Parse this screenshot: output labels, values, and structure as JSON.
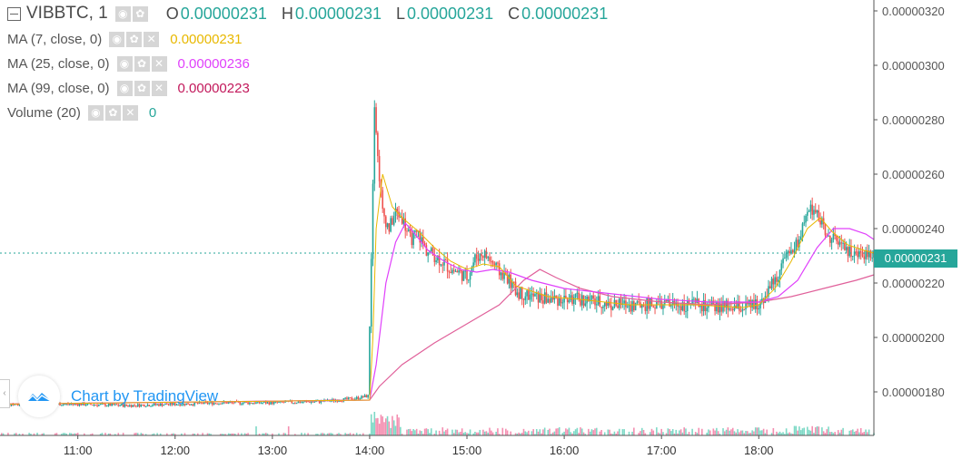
{
  "header": {
    "symbol": "VIBBTC, 1",
    "o_key": "O",
    "o_val": "0.00000231",
    "h_key": "H",
    "h_val": "0.00000231",
    "l_key": "L",
    "l_val": "0.00000231",
    "c_key": "C",
    "c_val": "0.00000231"
  },
  "studies": [
    {
      "label": "MA (7, close, 0)",
      "value": "0.00000231",
      "color": "#e8b800"
    },
    {
      "label": "MA (25, close, 0)",
      "value": "0.00000236",
      "color": "#e040fb"
    },
    {
      "label": "MA (99, close, 0)",
      "value": "0.00000223",
      "color": "#c2185b"
    },
    {
      "label": "Volume (20)",
      "value": "0",
      "color": "#26a69a"
    }
  ],
  "watermark": "Chart by TradingView",
  "last_price_label": "0.00000231",
  "colors": {
    "up": "#26a69a",
    "down": "#ef5350",
    "vol_up": "#7ed9c6",
    "vol_down": "#f48fb1",
    "ma7": "#e8b800",
    "ma25": "#e040fb",
    "ma99": "#e0609a",
    "price_line": "#26a69a"
  },
  "icons": [
    "collapse-icon",
    "eye-icon",
    "gear-icon",
    "close-icon",
    "tradingview-logo-icon",
    "scroll-left-icon"
  ],
  "chart_data": {
    "type": "candlestick",
    "x_ticks": [
      "11:00",
      "12:00",
      "13:00",
      "14:00",
      "15:00",
      "16:00",
      "17:00",
      "18:00"
    ],
    "x_tick_minutes": [
      0,
      60,
      120,
      180,
      240,
      300,
      360,
      420
    ],
    "y_ticks": [
      "0.00000180",
      "0.00000200",
      "0.00000220",
      "0.00000240",
      "0.00000260",
      "0.00000280",
      "0.00000300",
      "0.00000320"
    ],
    "y_tick_values": [
      180,
      200,
      220,
      240,
      260,
      280,
      300,
      320
    ],
    "y_unit_scale": "1e-8",
    "ylim": [
      164,
      324
    ],
    "x_range_minutes": [
      -48,
      491
    ],
    "last_price": 231,
    "grid": false,
    "ohlc_path": [
      [
        -48,
        175.5
      ],
      [
        0,
        175.5
      ],
      [
        30,
        175.0
      ],
      [
        60,
        175.5
      ],
      [
        90,
        176.0
      ],
      [
        120,
        176.0
      ],
      [
        150,
        176.5
      ],
      [
        170,
        177.5
      ],
      [
        179,
        178.5
      ],
      [
        181,
        230
      ],
      [
        183,
        287
      ],
      [
        185,
        266
      ],
      [
        188,
        246
      ],
      [
        192,
        240
      ],
      [
        196,
        246
      ],
      [
        200,
        244
      ],
      [
        205,
        236
      ],
      [
        210,
        238
      ],
      [
        215,
        232
      ],
      [
        220,
        230
      ],
      [
        225,
        228
      ],
      [
        230,
        225
      ],
      [
        235,
        224
      ],
      [
        240,
        222
      ],
      [
        245,
        229
      ],
      [
        250,
        231
      ],
      [
        255,
        228
      ],
      [
        260,
        224
      ],
      [
        265,
        222
      ],
      [
        270,
        217
      ],
      [
        280,
        215
      ],
      [
        290,
        214
      ],
      [
        300,
        214
      ],
      [
        310,
        214
      ],
      [
        320,
        213
      ],
      [
        330,
        212
      ],
      [
        340,
        212
      ],
      [
        350,
        212
      ],
      [
        360,
        212
      ],
      [
        370,
        212
      ],
      [
        380,
        212
      ],
      [
        390,
        211
      ],
      [
        400,
        211
      ],
      [
        410,
        211
      ],
      [
        420,
        212
      ],
      [
        425,
        217
      ],
      [
        430,
        221
      ],
      [
        435,
        227
      ],
      [
        440,
        231
      ],
      [
        445,
        236
      ],
      [
        450,
        246
      ],
      [
        455,
        248
      ],
      [
        460,
        240
      ],
      [
        465,
        236
      ],
      [
        470,
        234
      ],
      [
        475,
        232
      ],
      [
        480,
        230
      ],
      [
        485,
        231
      ],
      [
        491,
        231
      ]
    ],
    "ma7": [
      [
        -48,
        175.5
      ],
      [
        180,
        177
      ],
      [
        182,
        200
      ],
      [
        184,
        240
      ],
      [
        188,
        260
      ],
      [
        194,
        248
      ],
      [
        200,
        244
      ],
      [
        210,
        239
      ],
      [
        220,
        233
      ],
      [
        230,
        228
      ],
      [
        240,
        225
      ],
      [
        250,
        227
      ],
      [
        260,
        226
      ],
      [
        270,
        219
      ],
      [
        290,
        215
      ],
      [
        310,
        214
      ],
      [
        340,
        212
      ],
      [
        380,
        212
      ],
      [
        410,
        211
      ],
      [
        420,
        212
      ],
      [
        430,
        218
      ],
      [
        440,
        228
      ],
      [
        450,
        240
      ],
      [
        458,
        244
      ],
      [
        465,
        239
      ],
      [
        475,
        234
      ],
      [
        485,
        232
      ],
      [
        491,
        231
      ]
    ],
    "ma25": [
      [
        -48,
        175.5
      ],
      [
        180,
        177
      ],
      [
        184,
        190
      ],
      [
        190,
        220
      ],
      [
        196,
        235
      ],
      [
        202,
        242
      ],
      [
        208,
        238
      ],
      [
        216,
        232
      ],
      [
        226,
        228
      ],
      [
        236,
        225
      ],
      [
        246,
        224
      ],
      [
        256,
        225
      ],
      [
        266,
        224
      ],
      [
        280,
        221
      ],
      [
        300,
        218
      ],
      [
        330,
        216
      ],
      [
        360,
        214
      ],
      [
        390,
        213
      ],
      [
        420,
        213
      ],
      [
        432,
        215
      ],
      [
        444,
        221
      ],
      [
        456,
        233
      ],
      [
        466,
        240
      ],
      [
        476,
        240
      ],
      [
        486,
        238
      ],
      [
        491,
        236
      ]
    ],
    "ma99": [
      [
        -48,
        175.5
      ],
      [
        180,
        177
      ],
      [
        186,
        182
      ],
      [
        200,
        190
      ],
      [
        220,
        198
      ],
      [
        240,
        205
      ],
      [
        260,
        212
      ],
      [
        275,
        221
      ],
      [
        285,
        225
      ],
      [
        295,
        222
      ],
      [
        310,
        218
      ],
      [
        330,
        215
      ],
      [
        360,
        213
      ],
      [
        390,
        212
      ],
      [
        420,
        213
      ],
      [
        440,
        215
      ],
      [
        460,
        218
      ],
      [
        480,
        221
      ],
      [
        491,
        223
      ]
    ]
  }
}
